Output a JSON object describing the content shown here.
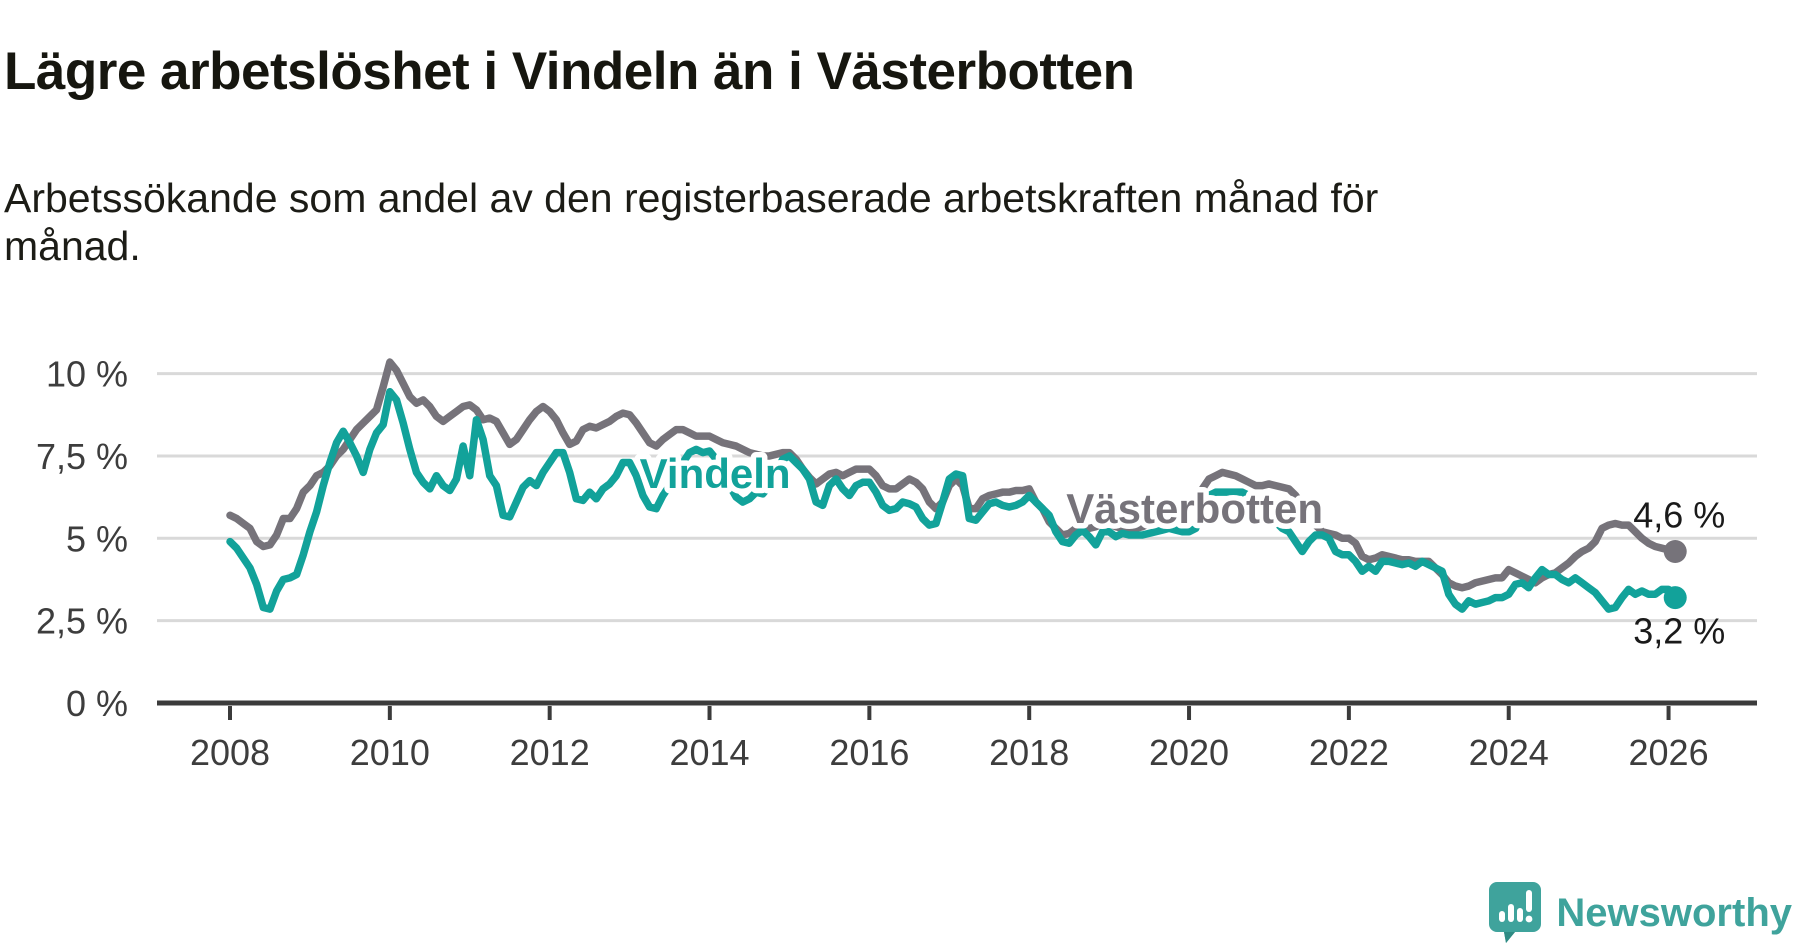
{
  "header": {
    "title": "Lägre arbetslöshet i Vindeln än i Västerbotten",
    "subtitle": "Arbetssökande som andel av den registerbaserade arbetskraften månad för månad."
  },
  "footer": {
    "brand": "Newsworthy",
    "brand_color": "#3fa39c"
  },
  "chart_data": {
    "type": "line",
    "title": "Lägre arbetslöshet i Vindeln än i Västerbotten",
    "subtitle": "Arbetssökande som andel av den registerbaserade arbetskraften månad för månad.",
    "unit": "%",
    "grid": "horizontal",
    "legend_position": "inline-labels",
    "x": {
      "frequency": "monthly",
      "start_year": 2008,
      "start_month": 1,
      "end_year": 2026,
      "end_month": 2,
      "tick_years": [
        2008,
        2010,
        2012,
        2014,
        2016,
        2018,
        2020,
        2022,
        2024,
        2026
      ]
    },
    "y": {
      "min": 0,
      "max": 10.5,
      "ticks": [
        {
          "value": 10,
          "label": "10 %"
        },
        {
          "value": 7.5,
          "label": "7,5 %"
        },
        {
          "value": 5,
          "label": "5 %"
        },
        {
          "value": 2.5,
          "label": "2,5 %"
        },
        {
          "value": 0,
          "label": "0 %"
        }
      ]
    },
    "series": [
      {
        "name": "Västerbotten",
        "color": "#76737a",
        "end_label": "4,6 %",
        "end_value": 4.6,
        "end_label_dy": -24,
        "label_at": {
          "year": 2020.07,
          "value": 5.92
        },
        "values": [
          5.7,
          5.6,
          5.45,
          5.3,
          4.9,
          4.75,
          4.8,
          5.1,
          5.6,
          5.6,
          5.9,
          6.4,
          6.6,
          6.9,
          7.0,
          7.2,
          7.5,
          7.7,
          8.0,
          8.3,
          8.5,
          8.7,
          8.9,
          9.6,
          10.35,
          10.1,
          9.7,
          9.3,
          9.1,
          9.2,
          9.0,
          8.7,
          8.55,
          8.7,
          8.85,
          9.0,
          9.05,
          8.9,
          8.6,
          8.65,
          8.55,
          8.2,
          7.85,
          8.0,
          8.3,
          8.6,
          8.85,
          9.0,
          8.85,
          8.6,
          8.2,
          7.85,
          7.95,
          8.3,
          8.4,
          8.35,
          8.45,
          8.55,
          8.7,
          8.8,
          8.75,
          8.5,
          8.2,
          7.9,
          7.8,
          8.0,
          8.15,
          8.3,
          8.3,
          8.2,
          8.1,
          8.1,
          8.1,
          8.0,
          7.9,
          7.85,
          7.8,
          7.7,
          7.6,
          7.55,
          7.5,
          7.5,
          7.55,
          7.6,
          7.6,
          7.4,
          7.1,
          6.85,
          6.65,
          6.8,
          6.95,
          7.0,
          6.9,
          7.0,
          7.1,
          7.1,
          7.1,
          6.9,
          6.6,
          6.5,
          6.5,
          6.65,
          6.8,
          6.7,
          6.5,
          6.1,
          5.9,
          6.1,
          6.6,
          6.8,
          6.6,
          5.9,
          5.9,
          6.2,
          6.3,
          6.35,
          6.4,
          6.4,
          6.45,
          6.45,
          6.5,
          6.1,
          5.9,
          5.5,
          5.3,
          5.1,
          5.15,
          5.3,
          5.35,
          5.3,
          5.35,
          5.45,
          5.45,
          5.35,
          5.3,
          5.3,
          5.3,
          5.35,
          5.45,
          5.55,
          5.65,
          5.75,
          5.85,
          6.0,
          6.1,
          6.2,
          6.5,
          6.8,
          6.9,
          7.0,
          6.95,
          6.9,
          6.8,
          6.7,
          6.6,
          6.6,
          6.65,
          6.6,
          6.55,
          6.5,
          6.3,
          6.0,
          5.7,
          5.4,
          5.2,
          5.15,
          5.1,
          5.0,
          5.0,
          4.85,
          4.45,
          4.35,
          4.4,
          4.5,
          4.45,
          4.4,
          4.35,
          4.35,
          4.3,
          4.3,
          4.3,
          4.1,
          3.9,
          3.65,
          3.55,
          3.5,
          3.55,
          3.65,
          3.7,
          3.75,
          3.8,
          3.8,
          4.05,
          3.95,
          3.85,
          3.75,
          3.65,
          3.8,
          3.9,
          3.95,
          4.1,
          4.25,
          4.45,
          4.6,
          4.7,
          4.9,
          5.3,
          5.4,
          5.45,
          5.4,
          5.4,
          5.2,
          5.0,
          4.85,
          4.75,
          4.7,
          4.65,
          4.6
        ]
      },
      {
        "name": "Vindeln",
        "color": "#12a29a",
        "end_label": "3,2 %",
        "end_value": 3.2,
        "end_label_dy": 46,
        "label_at": {
          "year": 2014.07,
          "value": 6.98
        },
        "values": [
          4.9,
          4.7,
          4.4,
          4.1,
          3.6,
          2.9,
          2.85,
          3.4,
          3.75,
          3.8,
          3.9,
          4.5,
          5.2,
          5.8,
          6.6,
          7.3,
          7.9,
          8.25,
          7.9,
          7.5,
          7.0,
          7.7,
          8.2,
          8.45,
          9.45,
          9.2,
          8.5,
          7.7,
          7.0,
          6.7,
          6.5,
          6.9,
          6.6,
          6.45,
          6.8,
          7.8,
          6.9,
          8.6,
          8.0,
          6.9,
          6.6,
          5.7,
          5.65,
          6.1,
          6.55,
          6.75,
          6.6,
          7.0,
          7.3,
          7.6,
          7.6,
          7.0,
          6.2,
          6.15,
          6.4,
          6.2,
          6.5,
          6.65,
          6.9,
          7.3,
          7.3,
          6.9,
          6.3,
          5.95,
          5.9,
          6.3,
          6.6,
          7.0,
          7.3,
          7.6,
          7.7,
          7.6,
          7.65,
          7.4,
          7.0,
          6.6,
          6.25,
          6.1,
          6.2,
          6.4,
          6.35,
          6.6,
          7.0,
          7.4,
          7.5,
          7.3,
          7.1,
          6.8,
          6.1,
          6.0,
          6.6,
          6.8,
          6.5,
          6.3,
          6.6,
          6.7,
          6.7,
          6.4,
          6.0,
          5.85,
          5.9,
          6.1,
          6.05,
          5.95,
          5.6,
          5.4,
          5.45,
          6.1,
          6.8,
          6.95,
          6.9,
          5.6,
          5.55,
          5.8,
          6.05,
          6.1,
          6.0,
          5.95,
          6.0,
          6.1,
          6.3,
          6.1,
          5.9,
          5.7,
          5.2,
          4.9,
          4.85,
          5.1,
          5.25,
          5.05,
          4.8,
          5.2,
          5.2,
          5.05,
          5.15,
          5.1,
          5.1,
          5.1,
          5.15,
          5.2,
          5.25,
          5.3,
          5.25,
          5.2,
          5.2,
          5.3,
          5.9,
          6.3,
          6.4,
          6.4,
          6.4,
          6.4,
          6.4,
          6.3,
          6.2,
          6.0,
          5.8,
          5.5,
          5.3,
          5.2,
          4.9,
          4.6,
          4.9,
          5.1,
          5.1,
          5.0,
          4.6,
          4.5,
          4.5,
          4.3,
          4.0,
          4.15,
          4.0,
          4.3,
          4.3,
          4.25,
          4.2,
          4.25,
          4.15,
          4.3,
          4.2,
          4.1,
          4.0,
          3.3,
          3.0,
          2.85,
          3.1,
          3.0,
          3.05,
          3.1,
          3.2,
          3.2,
          3.3,
          3.6,
          3.65,
          3.5,
          3.8,
          4.05,
          3.9,
          3.9,
          3.75,
          3.65,
          3.8,
          3.65,
          3.5,
          3.35,
          3.1,
          2.85,
          2.9,
          3.2,
          3.45,
          3.3,
          3.4,
          3.3,
          3.3,
          3.45,
          3.45,
          3.2
        ]
      }
    ]
  }
}
